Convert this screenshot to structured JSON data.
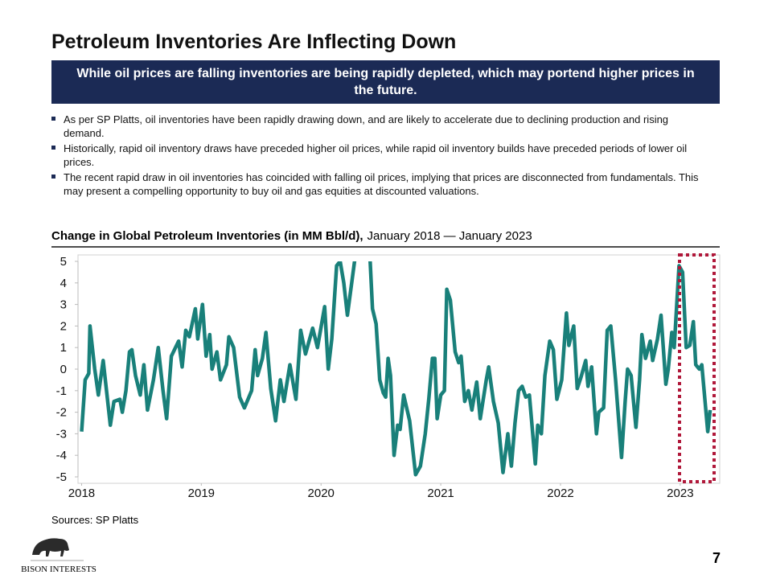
{
  "header": {
    "title": "Petroleum Inventories Are Inflecting Down",
    "banner": "While oil prices are falling inventories are being rapidly depleted, which may portend higher prices in the future."
  },
  "bullets": [
    "As per SP Platts, oil inventories have been rapidly drawing down, and are likely to accelerate due to declining production and rising demand.",
    "Historically, rapid oil inventory draws have preceded higher oil prices, while rapid oil inventory builds have preceded periods of lower oil prices.",
    "The recent rapid draw in oil inventories has coincided with falling oil prices, implying that prices are disconnected from fundamentals. This may present a compelling opportunity to buy oil and gas equities at discounted valuations."
  ],
  "chart_data": {
    "type": "line",
    "title": "Change in Global Petroleum Inventories (in MM Bbl/d),",
    "subtitle": "January 2018 — January 2023",
    "color": "#19807a",
    "x": [
      2018.0,
      2018.03,
      2018.06,
      2018.07,
      2018.11,
      2018.14,
      2018.18,
      2018.24,
      2018.27,
      2018.32,
      2018.34,
      2018.37,
      2018.4,
      2018.42,
      2018.45,
      2018.49,
      2018.52,
      2018.55,
      2018.6,
      2018.64,
      2018.68,
      2018.71,
      2018.75,
      2018.81,
      2018.84,
      2018.87,
      2018.9,
      2018.95,
      2018.97,
      2019.01,
      2019.04,
      2019.07,
      2019.09,
      2019.13,
      2019.16,
      2019.21,
      2019.23,
      2019.27,
      2019.32,
      2019.36,
      2019.42,
      2019.45,
      2019.47,
      2019.51,
      2019.54,
      2019.58,
      2019.62,
      2019.66,
      2019.69,
      2019.74,
      2019.79,
      2019.83,
      2019.87,
      2019.93,
      2019.97,
      2020.03,
      2020.06,
      2020.09,
      2020.13,
      2020.16,
      2020.19,
      2020.22,
      2020.28,
      2020.34,
      2020.41,
      2020.43,
      2020.46,
      2020.49,
      2020.52,
      2020.54,
      2020.56,
      2020.58,
      2020.61,
      2020.64,
      2020.66,
      2020.69,
      2020.74,
      2020.79,
      2020.83,
      2020.87,
      2020.9,
      2020.93,
      2020.95,
      2020.97,
      2021.0,
      2021.03,
      2021.05,
      2021.08,
      2021.12,
      2021.15,
      2021.17,
      2021.2,
      2021.23,
      2021.26,
      2021.3,
      2021.33,
      2021.38,
      2021.4,
      2021.44,
      2021.48,
      2021.52,
      2021.56,
      2021.59,
      2021.62,
      2021.65,
      2021.68,
      2021.71,
      2021.74,
      2021.79,
      2021.81,
      2021.84,
      2021.87,
      2021.91,
      2021.94,
      2021.97,
      2022.01,
      2022.05,
      2022.07,
      2022.11,
      2022.14,
      2022.17,
      2022.21,
      2022.23,
      2022.26,
      2022.3,
      2022.32,
      2022.36,
      2022.39,
      2022.42,
      2022.46,
      2022.51,
      2022.54,
      2022.56,
      2022.59,
      2022.63,
      2022.66,
      2022.68,
      2022.71,
      2022.75,
      2022.77,
      2022.81,
      2022.84,
      2022.88,
      2022.9,
      2022.93,
      2022.95,
      2022.99,
      2023.02,
      2023.05,
      2023.08,
      2023.11,
      2023.13,
      2023.16,
      2023.18,
      2023.23,
      2023.25
    ],
    "values": [
      -2.9,
      -0.5,
      -0.2,
      2.0,
      0,
      -1.2,
      0.4,
      -2.6,
      -1.5,
      -1.4,
      -2.0,
      -1.0,
      0.8,
      0.9,
      -0.3,
      -1.2,
      0.2,
      -1.9,
      -0.5,
      1.0,
      -1.0,
      -2.3,
      0.6,
      1.3,
      0.1,
      1.8,
      1.5,
      2.8,
      1.4,
      3.0,
      0.6,
      1.6,
      0.0,
      0.8,
      -0.5,
      0.2,
      1.5,
      1.0,
      -1.3,
      -1.8,
      -1.0,
      0.9,
      -0.3,
      0.5,
      1.7,
      -0.9,
      -2.4,
      -0.5,
      -1.5,
      0.2,
      -1.4,
      1.8,
      0.7,
      1.9,
      1.0,
      2.9,
      0.0,
      1.4,
      4.8,
      5.0,
      4.0,
      2.5,
      5.0,
      7,
      5.0,
      2.8,
      2.1,
      -0.5,
      -1.1,
      -1.3,
      0.5,
      -0.3,
      -4.0,
      -2.6,
      -2.8,
      -1.2,
      -2.4,
      -4.9,
      -4.5,
      -3.0,
      -1.4,
      0.5,
      0.5,
      -2.3,
      -1.2,
      -1.0,
      3.7,
      3.2,
      0.8,
      0.3,
      0.6,
      -1.5,
      -1.0,
      -1.9,
      -0.6,
      -2.3,
      -0.5,
      0.1,
      -1.5,
      -2.5,
      -4.8,
      -3.0,
      -4.5,
      -2.5,
      -1.0,
      -0.8,
      -1.3,
      -1.2,
      -4.4,
      -2.6,
      -3.0,
      -0.3,
      1.3,
      0.9,
      -1.4,
      -0.5,
      2.6,
      1.1,
      2.0,
      -0.9,
      -0.4,
      0.4,
      -0.8,
      0.1,
      -3.0,
      -2.0,
      -1.8,
      1.8,
      2.0,
      -0.5,
      -4.1,
      -1.5,
      0.0,
      -0.3,
      -2.7,
      -0.5,
      1.6,
      0.5,
      1.3,
      0.4,
      1.4,
      2.5,
      -0.7,
      0.0,
      1.7,
      1.0,
      4.8,
      4.5,
      1.0,
      1.1,
      2.2,
      0.2,
      0.0,
      0.2,
      -2.9,
      -1.9
    ],
    "xlim": [
      2017.97,
      2023.33
    ],
    "xticks": [
      2018,
      2019,
      2020,
      2021,
      2022,
      2023
    ],
    "ylim": [
      -5,
      5
    ],
    "yticks": [
      -5,
      -4,
      -3,
      -2,
      -1,
      0,
      1,
      2,
      3,
      4,
      5
    ]
  },
  "footer": {
    "source": "Sources: SP Platts",
    "logo": "BISON INTERESTS",
    "page": "7"
  }
}
